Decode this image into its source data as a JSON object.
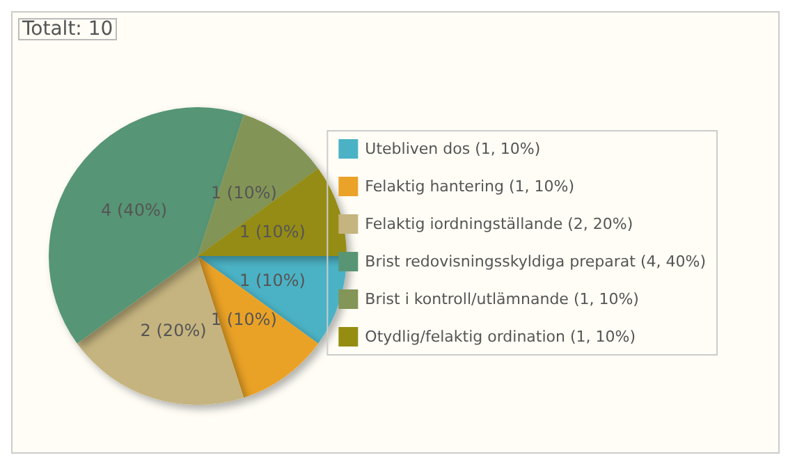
{
  "chart_data": {
    "type": "pie",
    "title": "Totalt: 10",
    "categories": [
      "Utebliven dos (1, 10%)",
      "Felaktig hantering (1, 10%)",
      "Felaktig iordningställande (2, 20%)",
      "Brist redovisningsskyldiga preparat (4, 40%)",
      "Brist i kontroll/utlämnande (1, 10%)",
      "Otydlig/felaktig ordination (1, 10%)"
    ],
    "values": [
      1,
      1,
      2,
      4,
      1,
      1
    ],
    "value_labels": [
      "1 (10%)",
      "1 (10%)",
      "2 (20%)",
      "4 (40%)",
      "1 (10%)",
      "1 (10%)"
    ],
    "colors": [
      "#4bb2c5",
      "#eaa228",
      "#c5b47f",
      "#579575",
      "#839557",
      "#958c12"
    ],
    "legend": "right"
  }
}
